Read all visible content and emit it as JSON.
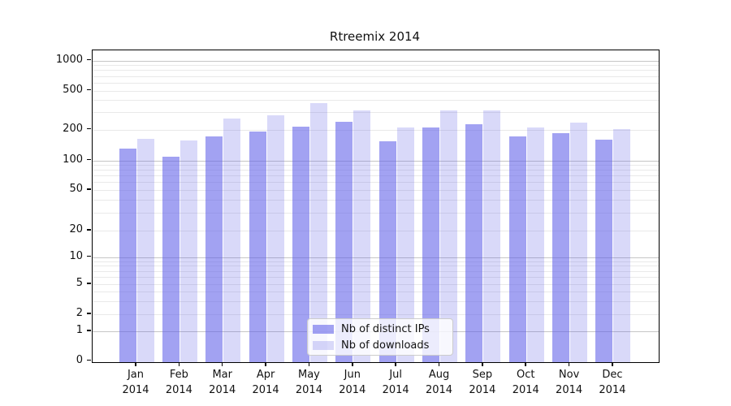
{
  "chart_data": {
    "type": "bar",
    "title": "Rtreemix 2014",
    "scale": "symlog",
    "grid": true,
    "legend_position": "lower center",
    "categories": [
      "Jan",
      "Feb",
      "Mar",
      "Apr",
      "May",
      "Jun",
      "Jul",
      "Aug",
      "Sep",
      "Oct",
      "Nov",
      "Dec"
    ],
    "category_year": "2014",
    "yticks": [
      0,
      1,
      2,
      5,
      10,
      20,
      50,
      100,
      200,
      500,
      1000
    ],
    "ylim": [
      0,
      1300
    ],
    "series": [
      {
        "name": "Nb of distinct IPs",
        "color": "rgba(95,95,232,0.58)",
        "values": [
          135,
          111,
          175,
          197,
          222,
          247,
          158,
          215,
          233,
          176,
          190,
          165
        ]
      },
      {
        "name": "Nb of downloads",
        "color": "rgba(95,95,232,0.24)",
        "values": [
          168,
          160,
          265,
          290,
          380,
          322,
          218,
          322,
          320,
          218,
          243,
          207
        ]
      }
    ],
    "colors": {
      "bar_base": "#5f5fe8",
      "grid_major": "#c6c6c6",
      "grid_minor": "#e9e9e9",
      "axis": "#000000"
    }
  }
}
